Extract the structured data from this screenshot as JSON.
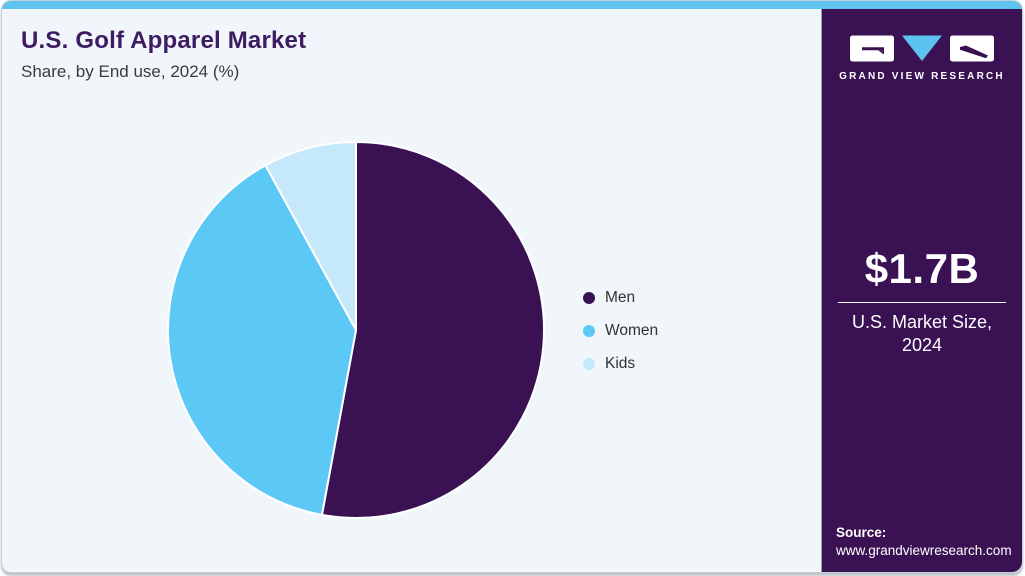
{
  "header": {
    "title": "U.S. Golf Apparel Market",
    "subtitle": "Share, by End use, 2024 (%)"
  },
  "chart_data": {
    "type": "pie",
    "title": "U.S. Golf Apparel Market Share, by End use, 2024 (%)",
    "categories": [
      "Men",
      "Women",
      "Kids"
    ],
    "values": [
      52.9,
      39.1,
      8.0
    ],
    "colors": [
      "#3a1254",
      "#5bc8f5",
      "#c5e9fb"
    ],
    "unit": "%",
    "start_angle_deg": 0,
    "direction": "clockwise",
    "legend_position": "right",
    "data_labels": false
  },
  "sidebar": {
    "logo_wordmark": "GRAND VIEW RESEARCH",
    "market_size": "$1.7B",
    "market_size_label": "U.S. Market Size, 2024",
    "source_label": "Source:",
    "source_url": "www.grandviewresearch.com"
  },
  "theme": {
    "top_strip": "#60c4ee",
    "card_background": "#f0f6fa",
    "sidebar_background": "#3a1254",
    "title_color": "#3d1c64",
    "logo_triangle": "#5bc3ee",
    "text_on_sidebar": "#ffffff"
  }
}
